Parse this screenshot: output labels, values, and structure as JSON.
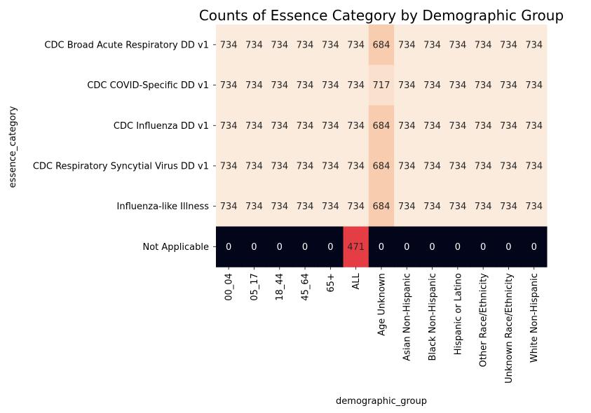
{
  "chart_data": {
    "type": "heatmap",
    "title": "Counts of Essence Category by Demographic Group",
    "xlabel": "demographic_group",
    "ylabel": "essence_category",
    "colorbar": false,
    "colormap": "rocket",
    "x": [
      "00_04",
      "05_17",
      "18_44",
      "45_64",
      "65+",
      "ALL",
      "Age Unknown",
      "Asian Non-Hispanic",
      "Black Non-Hispanic",
      "Hispanic or Latino",
      "Other Race/Ethnicity",
      "Unknown Race/Ethnicity",
      "White Non-Hispanic"
    ],
    "y": [
      "CDC Broad Acute Respiratory DD v1",
      "CDC COVID-Specific DD v1",
      "CDC Influenza DD v1",
      "CDC Respiratory Syncytial Virus DD v1",
      "Influenza-like Illness",
      "Not Applicable"
    ],
    "values": [
      [
        734,
        734,
        734,
        734,
        734,
        734,
        684,
        734,
        734,
        734,
        734,
        734,
        734
      ],
      [
        734,
        734,
        734,
        734,
        734,
        734,
        717,
        734,
        734,
        734,
        734,
        734,
        734
      ],
      [
        734,
        734,
        734,
        734,
        734,
        734,
        684,
        734,
        734,
        734,
        734,
        734,
        734
      ],
      [
        734,
        734,
        734,
        734,
        734,
        734,
        684,
        734,
        734,
        734,
        734,
        734,
        734
      ],
      [
        734,
        734,
        734,
        734,
        734,
        734,
        684,
        734,
        734,
        734,
        734,
        734,
        734
      ],
      [
        0,
        0,
        0,
        0,
        0,
        471,
        0,
        0,
        0,
        0,
        0,
        0,
        0
      ]
    ]
  }
}
